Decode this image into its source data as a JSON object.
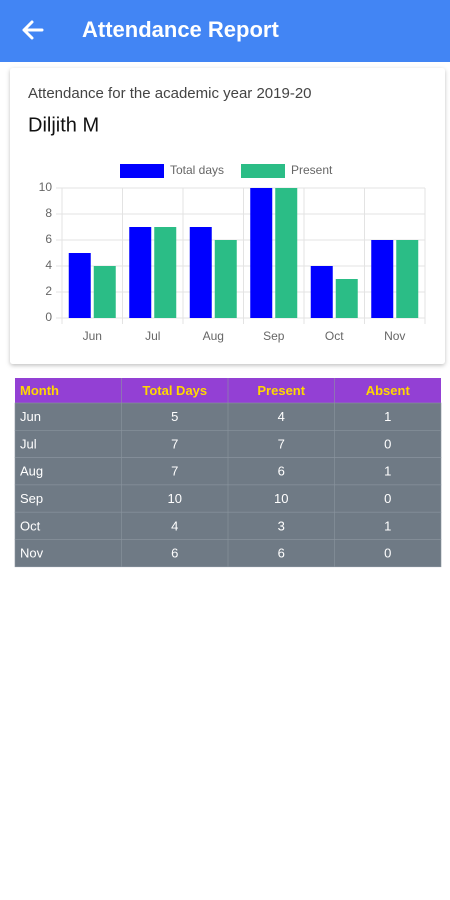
{
  "header": {
    "title": "Attendance Report"
  },
  "card": {
    "subtitle": "Attendance for the academic year 2019-20",
    "name": "Diljith M"
  },
  "chart_data": {
    "type": "bar",
    "categories": [
      "Jun",
      "Jul",
      "Aug",
      "Sep",
      "Oct",
      "Nov"
    ],
    "series": [
      {
        "name": "Total days",
        "color": "#0000ff",
        "values": [
          5,
          7,
          7,
          10,
          4,
          6
        ]
      },
      {
        "name": "Present",
        "color": "#2bbd86",
        "values": [
          4,
          7,
          6,
          10,
          3,
          6
        ]
      }
    ],
    "ylim": [
      0,
      10
    ],
    "yticks": [
      0,
      2,
      4,
      6,
      8,
      10
    ],
    "grid": true,
    "legend": "top"
  },
  "table": {
    "header": [
      "Month",
      "Total Days",
      "Present",
      "Absent"
    ],
    "rows": [
      [
        "Jun",
        "5",
        "4",
        "1"
      ],
      [
        "Jul",
        "7",
        "7",
        "0"
      ],
      [
        "Aug",
        "7",
        "6",
        "1"
      ],
      [
        "Sep",
        "10",
        "10",
        "0"
      ],
      [
        "Oct",
        "4",
        "3",
        "1"
      ],
      [
        "Nov",
        "6",
        "6",
        "0"
      ]
    ]
  }
}
